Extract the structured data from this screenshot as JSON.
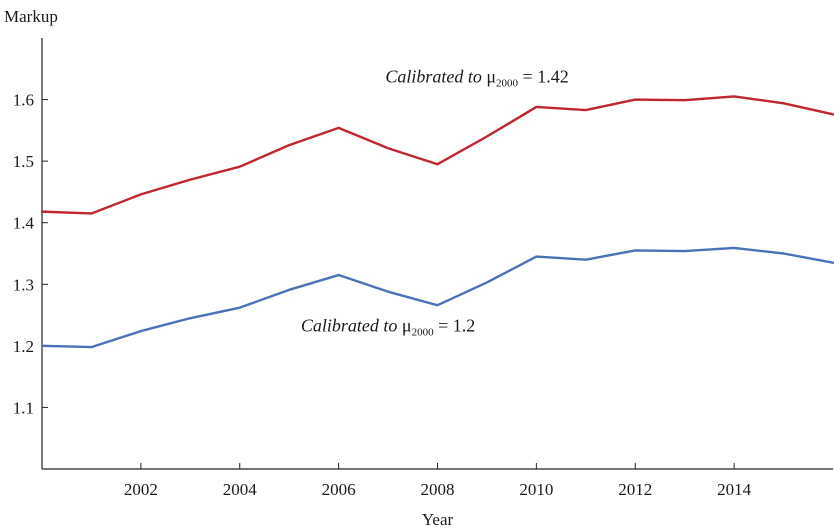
{
  "chart_data": {
    "type": "line",
    "title": "",
    "ylabel": "Markup",
    "xlabel": "Year",
    "xlim": [
      2000,
      2016
    ],
    "ylim": [
      1.0,
      1.7
    ],
    "xticks": [
      2002,
      2004,
      2006,
      2008,
      2010,
      2012,
      2014
    ],
    "yticks": [
      1.1,
      1.2,
      1.3,
      1.4,
      1.5,
      1.6
    ],
    "ytick_labels": [
      "1.1",
      "1.2",
      "1.3",
      "1.4",
      "1.5",
      "1.6"
    ],
    "grid": false,
    "legend": "none",
    "x": [
      2000,
      2001,
      2002,
      2003,
      2004,
      2005,
      2006,
      2007,
      2008,
      2009,
      2010,
      2011,
      2012,
      2013,
      2014,
      2015,
      2016
    ],
    "series": [
      {
        "color": "#c0262d",
        "values": [
          1.418,
          1.415,
          1.446,
          1.47,
          1.491,
          1.526,
          1.554,
          1.521,
          1.495,
          1.54,
          1.588,
          1.583,
          1.6,
          1.599,
          1.605,
          1.594,
          1.576
        ],
        "annotation": {
          "italic": "Calibrated to",
          "symbol": "μ",
          "subscript": "2000",
          "equals": "= 1.42",
          "x": 2008.8,
          "y": 1.628
        }
      },
      {
        "color": "#4a72b8",
        "values": [
          1.2,
          1.198,
          1.224,
          1.245,
          1.262,
          1.291,
          1.315,
          1.288,
          1.266,
          1.303,
          1.345,
          1.34,
          1.355,
          1.354,
          1.359,
          1.35,
          1.335
        ],
        "annotation": {
          "italic": "Calibrated to",
          "symbol": "μ",
          "subscript": "2000",
          "equals": "= 1.2",
          "x": 2007.0,
          "y": 1.223
        }
      }
    ]
  }
}
